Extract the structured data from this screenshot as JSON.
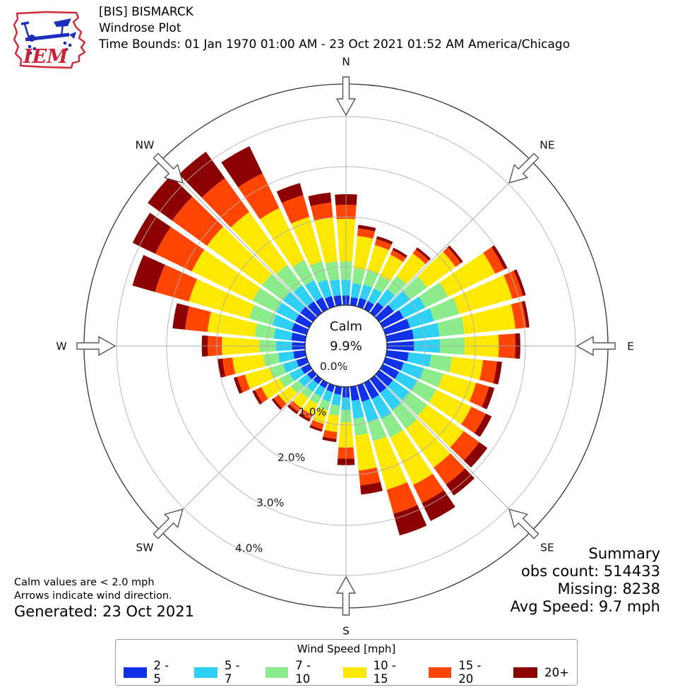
{
  "header": {
    "logo_text": "IEM",
    "title_line1": "[BIS] BISMARCK",
    "title_line2": "Windrose Plot",
    "title_line3": "Time Bounds: 01 Jan 1970 01:00 AM - 23 Oct 2021 01:52 AM America/Chicago"
  },
  "notes": {
    "line1": "Calm values are < 2.0 mph",
    "line2": "Arrows indicate wind direction.",
    "generated": "Generated: 23 Oct 2021"
  },
  "summary": {
    "title": "Summary",
    "obs_count": "obs count: 514433",
    "missing": "Missing: 8238",
    "avg_speed": "Avg Speed: 9.7 mph"
  },
  "legend": {
    "title": "Wind Speed [mph]",
    "items": [
      {
        "label": "2 - 5",
        "color": "#1031e8"
      },
      {
        "label": "5 - 7",
        "color": "#2ed0f5"
      },
      {
        "label": "7 - 10",
        "color": "#8cec8c"
      },
      {
        "label": "10 - 15",
        "color": "#fde801"
      },
      {
        "label": "15 - 20",
        "color": "#ff4503"
      },
      {
        "label": "20+",
        "color": "#8b0000"
      }
    ]
  },
  "chart_data": {
    "type": "windrose",
    "title": "[BIS] BISMARCK Windrose Plot",
    "units": "percent frequency",
    "center": {
      "calm_label": "Calm",
      "calm_value": "9.9%"
    },
    "ring_labels": [
      "0.0%",
      "1.0%",
      "2.0%",
      "3.0%",
      "4.0%"
    ],
    "ring_values_pct": [
      0,
      1,
      2,
      3,
      4
    ],
    "rmax_pct": 4.65,
    "compass": [
      "N",
      "NE",
      "E",
      "SE",
      "S",
      "SW",
      "W",
      "NW"
    ],
    "directions_deg": [
      0,
      10,
      20,
      30,
      40,
      50,
      60,
      70,
      80,
      90,
      100,
      110,
      120,
      130,
      140,
      150,
      160,
      170,
      180,
      190,
      200,
      210,
      220,
      230,
      240,
      250,
      260,
      270,
      280,
      290,
      300,
      310,
      320,
      330,
      340,
      350
    ],
    "series": [
      {
        "name": "2 - 5",
        "color": "#1031e8",
        "values": [
          0.43,
          0.4,
          0.42,
          0.42,
          0.5,
          0.6,
          0.7,
          0.75,
          0.78,
          0.78,
          0.68,
          0.62,
          0.6,
          0.58,
          0.58,
          0.6,
          0.58,
          0.52,
          0.45,
          0.4,
          0.38,
          0.36,
          0.36,
          0.38,
          0.42,
          0.45,
          0.48,
          0.5,
          0.52,
          0.55,
          0.55,
          0.55,
          0.52,
          0.5,
          0.46,
          0.44
        ]
      },
      {
        "name": "5 - 7",
        "color": "#2ed0f5",
        "values": [
          0.31,
          0.28,
          0.28,
          0.28,
          0.32,
          0.4,
          0.48,
          0.5,
          0.52,
          0.52,
          0.45,
          0.42,
          0.4,
          0.4,
          0.42,
          0.44,
          0.42,
          0.36,
          0.25,
          0.22,
          0.2,
          0.19,
          0.19,
          0.21,
          0.25,
          0.28,
          0.3,
          0.32,
          0.35,
          0.4,
          0.42,
          0.42,
          0.4,
          0.38,
          0.34,
          0.32
        ]
      },
      {
        "name": "7 - 10",
        "color": "#8cec8c",
        "values": [
          0.37,
          0.3,
          0.3,
          0.28,
          0.33,
          0.42,
          0.5,
          0.52,
          0.5,
          0.49,
          0.42,
          0.4,
          0.42,
          0.44,
          0.46,
          0.41,
          0.4,
          0.34,
          0.25,
          0.2,
          0.18,
          0.16,
          0.16,
          0.19,
          0.23,
          0.27,
          0.3,
          0.33,
          0.38,
          0.48,
          0.52,
          0.52,
          0.5,
          0.45,
          0.38,
          0.36
        ]
      },
      {
        "name": "10 - 15",
        "color": "#fde801",
        "values": [
          0.85,
          0.65,
          0.52,
          0.47,
          0.55,
          0.7,
          1.05,
          1.1,
          1.02,
          0.68,
          0.62,
          0.68,
          0.78,
          0.9,
          0.95,
          1.05,
          1.0,
          0.7,
          0.5,
          0.33,
          0.28,
          0.24,
          0.24,
          0.3,
          0.4,
          0.52,
          0.62,
          0.75,
          0.95,
          1.25,
          1.35,
          1.35,
          1.3,
          1.15,
          0.92,
          0.88
        ]
      },
      {
        "name": "15 - 20",
        "color": "#ff4503",
        "values": [
          0.28,
          0.15,
          0.12,
          0.1,
          0.1,
          0.13,
          0.2,
          0.22,
          0.22,
          0.33,
          0.28,
          0.27,
          0.32,
          0.38,
          0.42,
          0.4,
          0.5,
          0.3,
          0.22,
          0.14,
          0.11,
          0.1,
          0.1,
          0.12,
          0.14,
          0.16,
          0.2,
          0.28,
          0.45,
          0.7,
          0.81,
          0.86,
          0.83,
          0.77,
          0.45,
          0.3
        ]
      },
      {
        "name": "20+",
        "color": "#8b0000",
        "values": [
          0.21,
          0.07,
          0.06,
          0.05,
          0.05,
          0.05,
          0.07,
          0.06,
          0.06,
          0.1,
          0.1,
          0.11,
          0.13,
          0.2,
          0.27,
          0.4,
          0.45,
          0.18,
          0.13,
          0.06,
          0.05,
          0.05,
          0.05,
          0.05,
          0.06,
          0.07,
          0.1,
          0.12,
          0.25,
          0.47,
          0.5,
          0.6,
          0.65,
          0.6,
          0.25,
          0.2
        ]
      }
    ],
    "layout": {
      "bar_width_deg": 8.4,
      "grid_color": "#b0b0b0",
      "outer_circle_color": "#333333",
      "calm_circle_color": "#ffffff"
    }
  }
}
